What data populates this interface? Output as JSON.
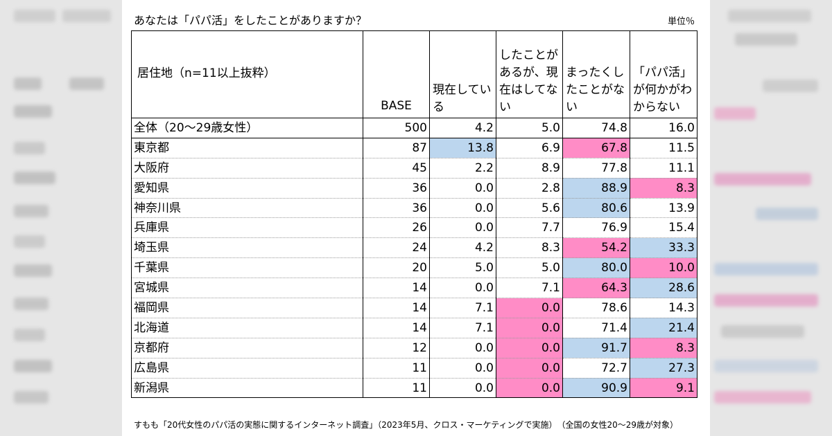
{
  "title": "あなたは「パパ活」をしたことがありますか？",
  "unit": "単位％",
  "headers": {
    "region": "居住地（n=11以上抜粋）",
    "base": "BASE",
    "col1": "現在している",
    "col2": "したことがあるが、現在はしてない",
    "col3": "まったくしたことがない",
    "col4": "「パパ活」が何かがわからない"
  },
  "highlight_colors": {
    "pink": "#ff8cc6",
    "blue": "#bcd6ee"
  },
  "rows": [
    {
      "name": "全体（20〜29歳女性）",
      "base": "500",
      "v": [
        "4.2",
        "5.0",
        "74.8",
        "16.0"
      ],
      "hl": [
        "",
        "",
        "",
        ""
      ]
    },
    {
      "name": "東京都",
      "base": "87",
      "v": [
        "13.8",
        "6.9",
        "67.8",
        "11.5"
      ],
      "hl": [
        "blue",
        "",
        "pink",
        ""
      ]
    },
    {
      "name": "大阪府",
      "base": "45",
      "v": [
        "2.2",
        "8.9",
        "77.8",
        "11.1"
      ],
      "hl": [
        "",
        "",
        "",
        ""
      ]
    },
    {
      "name": "愛知県",
      "base": "36",
      "v": [
        "0.0",
        "2.8",
        "88.9",
        "8.3"
      ],
      "hl": [
        "",
        "",
        "blue",
        "pink"
      ]
    },
    {
      "name": "神奈川県",
      "base": "36",
      "v": [
        "0.0",
        "5.6",
        "80.6",
        "13.9"
      ],
      "hl": [
        "",
        "",
        "blue",
        ""
      ]
    },
    {
      "name": "兵庫県",
      "base": "26",
      "v": [
        "0.0",
        "7.7",
        "76.9",
        "15.4"
      ],
      "hl": [
        "",
        "",
        "",
        ""
      ]
    },
    {
      "name": "埼玉県",
      "base": "24",
      "v": [
        "4.2",
        "8.3",
        "54.2",
        "33.3"
      ],
      "hl": [
        "",
        "",
        "pink",
        "blue"
      ]
    },
    {
      "name": "千葉県",
      "base": "20",
      "v": [
        "5.0",
        "5.0",
        "80.0",
        "10.0"
      ],
      "hl": [
        "",
        "",
        "blue",
        "pink"
      ]
    },
    {
      "name": "宮城県",
      "base": "14",
      "v": [
        "0.0",
        "7.1",
        "64.3",
        "28.6"
      ],
      "hl": [
        "",
        "",
        "pink",
        "blue"
      ]
    },
    {
      "name": "福岡県",
      "base": "14",
      "v": [
        "7.1",
        "0.0",
        "78.6",
        "14.3"
      ],
      "hl": [
        "",
        "pink",
        "",
        ""
      ]
    },
    {
      "name": "北海道",
      "base": "14",
      "v": [
        "7.1",
        "0.0",
        "71.4",
        "21.4"
      ],
      "hl": [
        "",
        "pink",
        "",
        "blue"
      ]
    },
    {
      "name": "京都府",
      "base": "12",
      "v": [
        "0.0",
        "0.0",
        "91.7",
        "8.3"
      ],
      "hl": [
        "",
        "pink",
        "blue",
        "pink"
      ]
    },
    {
      "name": "広島県",
      "base": "11",
      "v": [
        "0.0",
        "0.0",
        "72.7",
        "27.3"
      ],
      "hl": [
        "",
        "pink",
        "",
        "blue"
      ]
    },
    {
      "name": "新潟県",
      "base": "11",
      "v": [
        "0.0",
        "0.0",
        "90.9",
        "9.1"
      ],
      "hl": [
        "",
        "pink",
        "blue",
        "pink"
      ]
    }
  ],
  "source": "すもも「20代女性のパパ活の実態に関するインターネット調査」（2023年5月、クロス・マーケティングで実施）　（全国の女性20〜29歳が対象）"
}
